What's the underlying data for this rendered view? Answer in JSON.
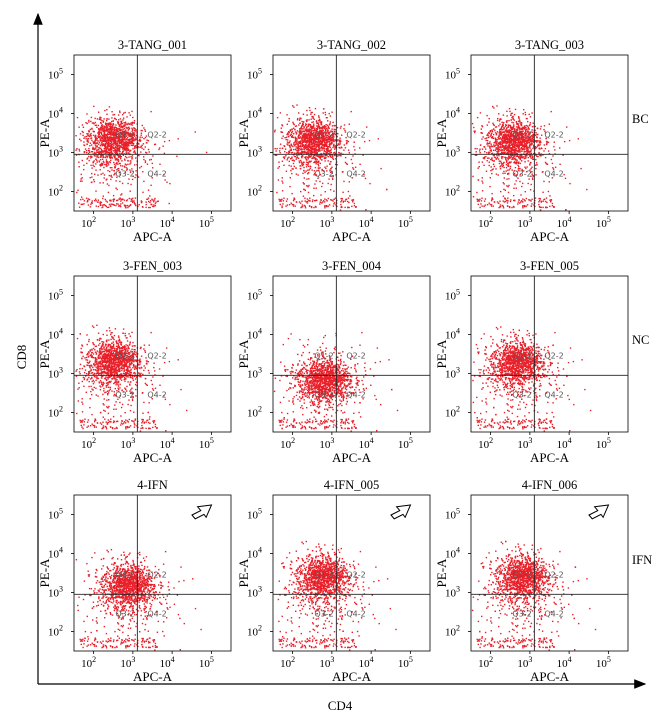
{
  "chart_data": {
    "type": "scatter",
    "x_axis_label": "CD4",
    "y_axis_label": "CD8",
    "panel_xlabel": "APC-A",
    "panel_ylabel": "PE-A",
    "log_scale": true,
    "x_ticks": [
      "10",
      "10",
      "10",
      "10"
    ],
    "x_exps": [
      "2",
      "3",
      "4",
      "5"
    ],
    "y_ticks": [
      "10",
      "10",
      "10",
      "10"
    ],
    "y_exps": [
      "5",
      "4",
      "3",
      "2"
    ],
    "gate_x": 1300,
    "gate_y": 900,
    "quadrants": [
      "Q1-2",
      "Q2-2",
      "Q3-2",
      "Q4-2"
    ],
    "point_color": "#e8202a",
    "row_labels": [
      "BC",
      "NC",
      "IFN"
    ],
    "panels": [
      {
        "title": "3-TANG_001",
        "row": 0,
        "col": 0,
        "cluster": {
          "cx": 300,
          "cy": 2200
        }
      },
      {
        "title": "3-TANG_002",
        "row": 0,
        "col": 1,
        "cluster": {
          "cx": 320,
          "cy": 2100
        }
      },
      {
        "title": "3-TANG_003",
        "row": 0,
        "col": 2,
        "cluster": {
          "cx": 360,
          "cy": 2000
        }
      },
      {
        "title": "3-FEN_003",
        "row": 1,
        "col": 0,
        "cluster": {
          "cx": 300,
          "cy": 2200
        }
      },
      {
        "title": "3-FEN_004",
        "row": 1,
        "col": 1,
        "cluster": {
          "cx": 600,
          "cy": 700
        }
      },
      {
        "title": "3-FEN_005",
        "row": 1,
        "col": 2,
        "cluster": {
          "cx": 450,
          "cy": 2000
        }
      },
      {
        "title": "4-IFN",
        "row": 2,
        "col": 0,
        "cluster": {
          "cx": 700,
          "cy": 1600
        },
        "arrow": true
      },
      {
        "title": "4-IFN_005",
        "row": 2,
        "col": 1,
        "cluster": {
          "cx": 550,
          "cy": 2600
        },
        "arrow": true
      },
      {
        "title": "4-IFN_006",
        "row": 2,
        "col": 2,
        "cluster": {
          "cx": 600,
          "cy": 2600
        },
        "arrow": true
      }
    ]
  }
}
